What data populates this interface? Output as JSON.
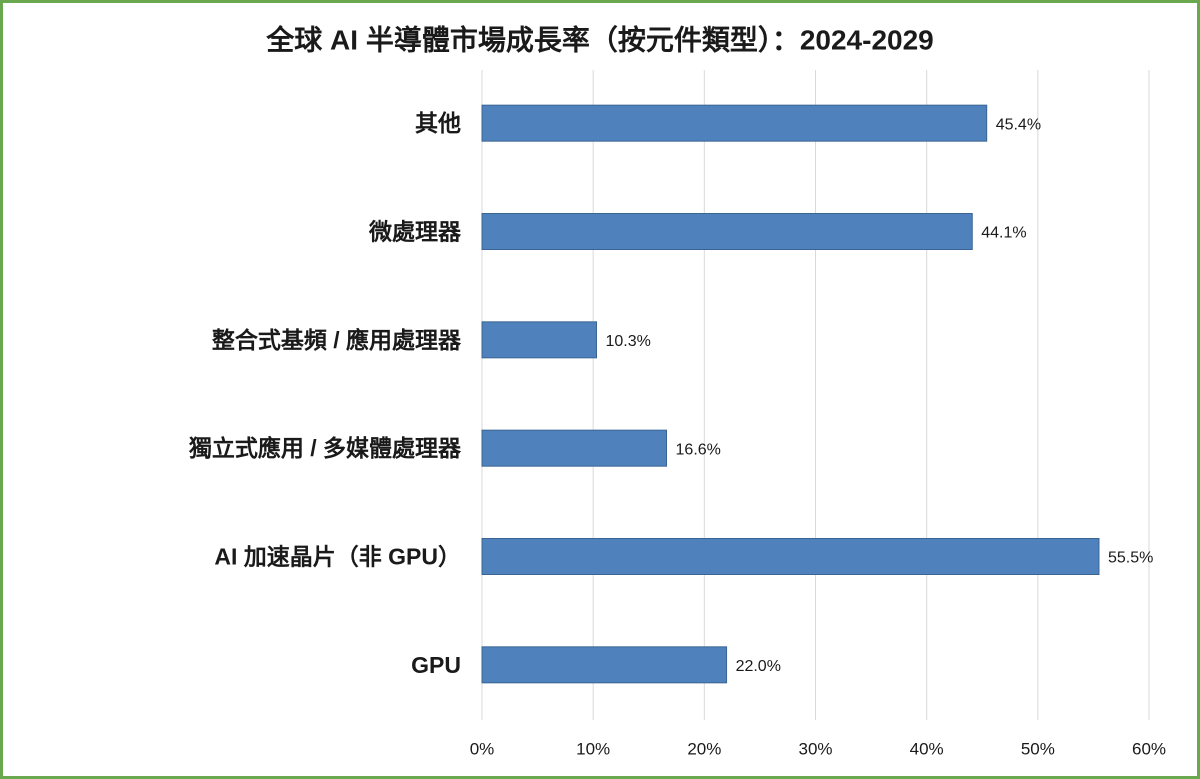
{
  "chart_data": {
    "type": "bar",
    "orientation": "horizontal",
    "title": "全球 AI 半導體市場成長率（按元件類型）：2024-2029",
    "categories": [
      "其他",
      "微處理器",
      "整合式基頻 / 應用處理器",
      "獨立式應用 / 多媒體處理器",
      "AI 加速晶片（非 GPU）",
      "GPU"
    ],
    "values": [
      45.4,
      44.1,
      10.3,
      16.6,
      55.5,
      22.0
    ],
    "value_labels": [
      "45.4%",
      "44.1%",
      "10.3%",
      "16.6%",
      "55.5%",
      "22.0%"
    ],
    "color": "#4f81bd",
    "xlim": [
      0,
      60
    ],
    "xticks": [
      {
        "value": 0,
        "label": "0%"
      },
      {
        "value": 10,
        "label": "10%"
      },
      {
        "value": 20,
        "label": "20%"
      },
      {
        "value": 30,
        "label": "30%"
      },
      {
        "value": 40,
        "label": "40%"
      },
      {
        "value": 50,
        "label": "50%"
      },
      {
        "value": 60,
        "label": "60%"
      }
    ],
    "grid": true
  }
}
